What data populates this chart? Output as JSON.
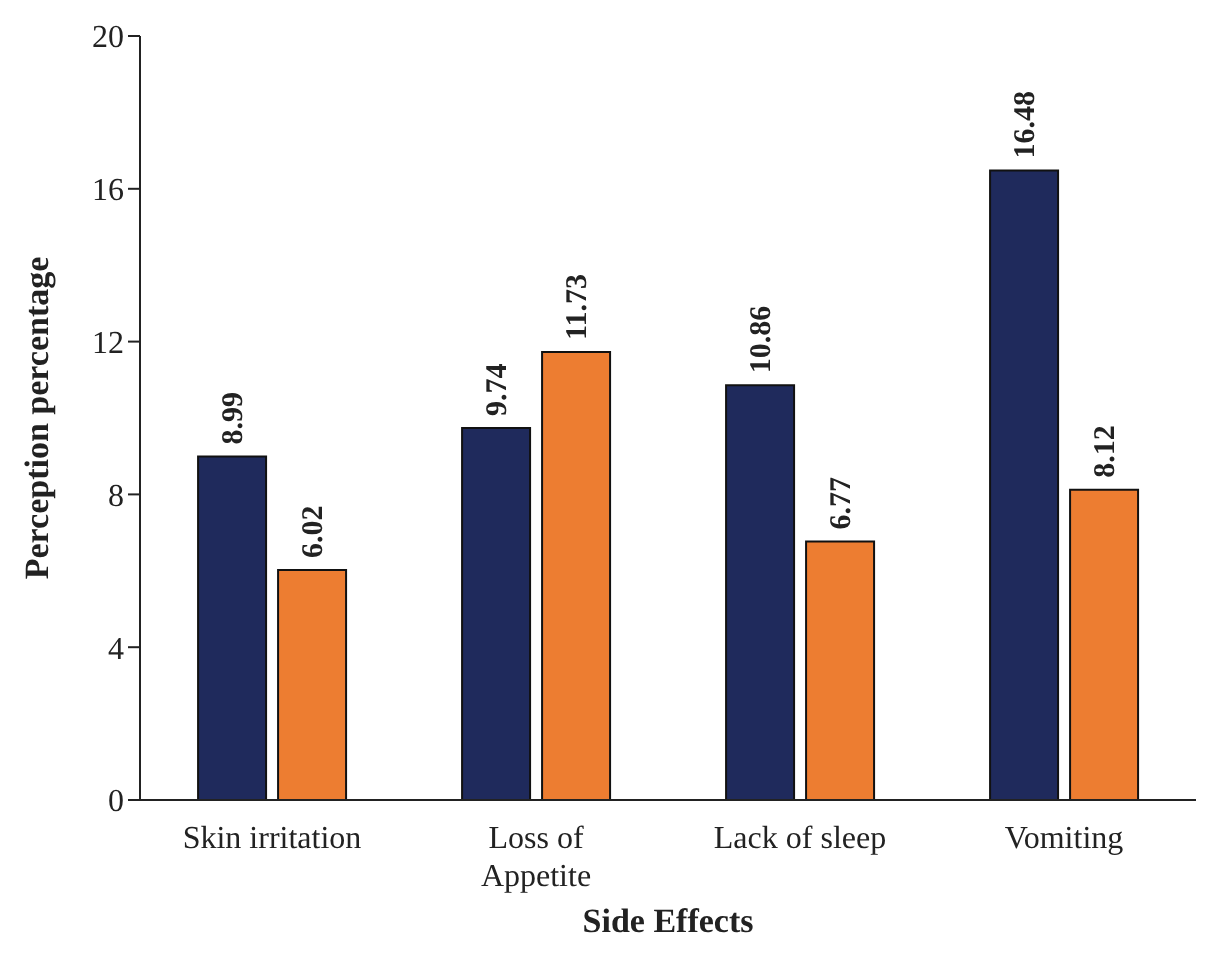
{
  "chart_data": {
    "type": "bar",
    "xlabel": "Side Effects",
    "ylabel": "Perception percentage",
    "categories": [
      "Skin irritation",
      "Loss of Appetite",
      "Lack of sleep",
      "Vomiting"
    ],
    "series": [
      {
        "color": "#1f2a5c",
        "values": [
          8.99,
          9.74,
          10.86,
          16.48
        ]
      },
      {
        "color": "#ed7d31",
        "values": [
          6.02,
          11.73,
          6.77,
          8.12
        ]
      }
    ],
    "ylim": [
      0,
      20
    ],
    "yticks": [
      0,
      4,
      8,
      12,
      16,
      20
    ],
    "grid": false,
    "legend": false,
    "data_labels": true
  }
}
